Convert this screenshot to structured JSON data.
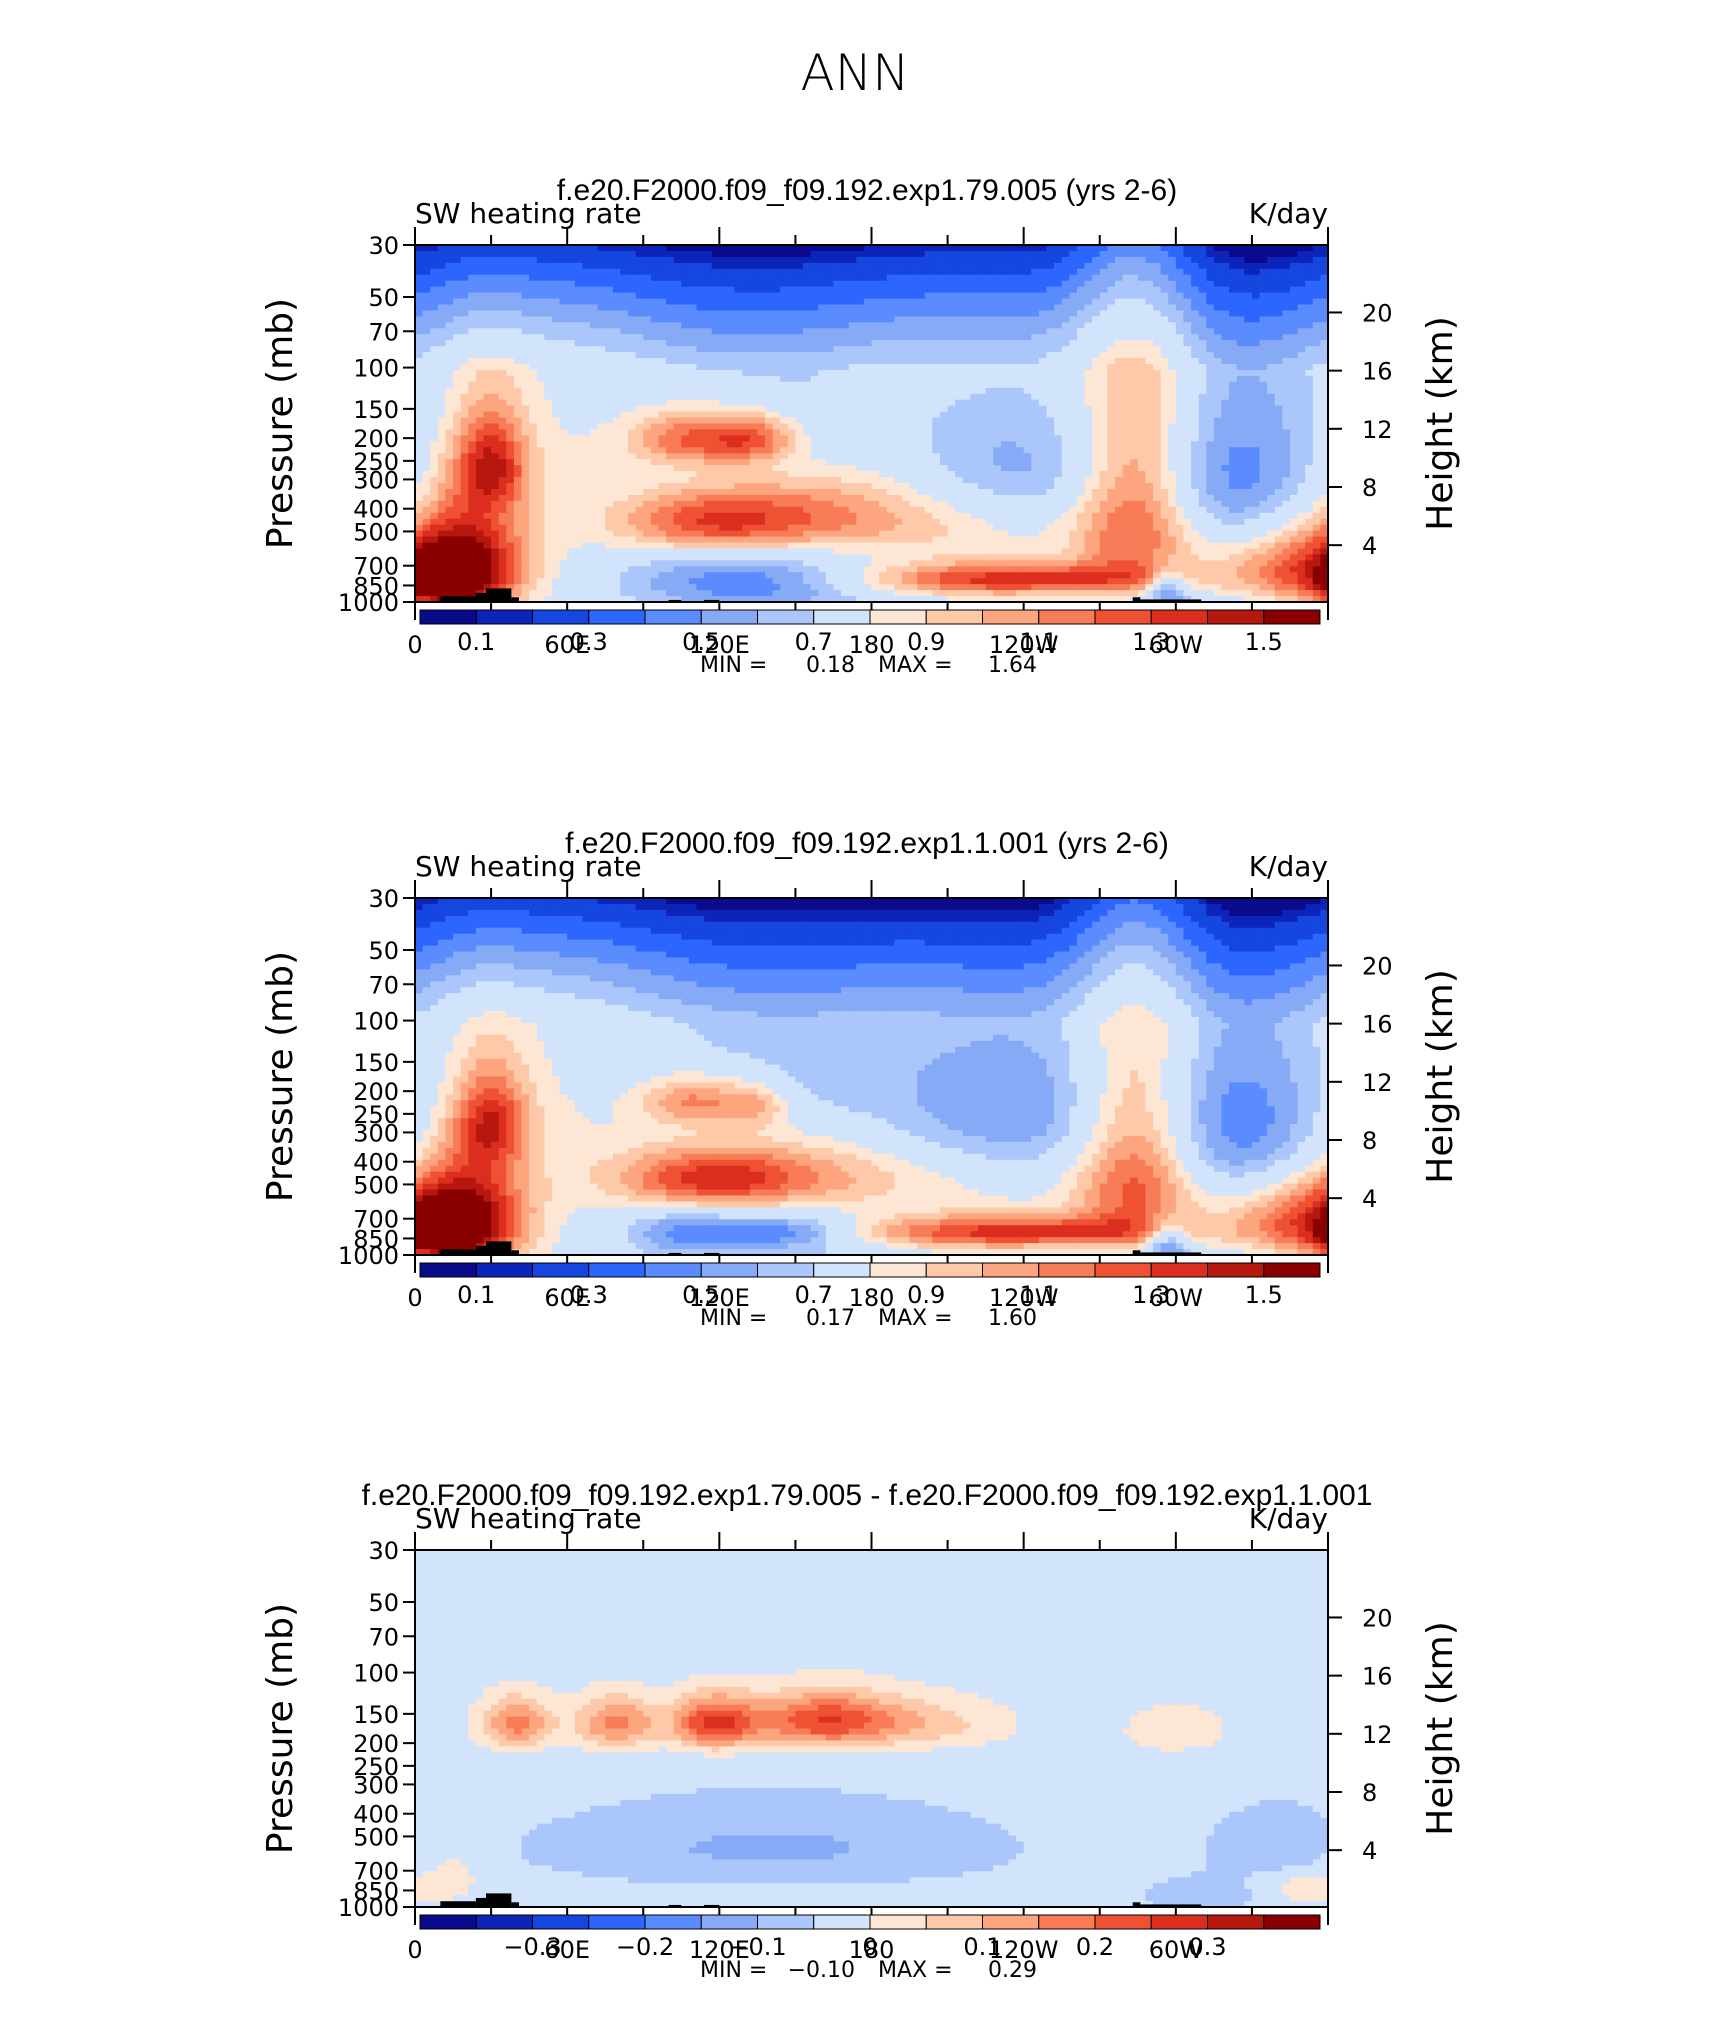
{
  "page": {
    "title": "ANN",
    "axis_labels": {
      "left_ylabel": "Pressure (mb)",
      "right_ylabel": "Height (km)",
      "variable": "SW heating rate",
      "units": "K/day"
    },
    "pressure_ticks": [
      "30",
      "50",
      "70",
      "100",
      "150",
      "200",
      "250",
      "300",
      "400",
      "500",
      "700",
      "850",
      "1000"
    ],
    "height_ticks": [
      "20",
      "16",
      "12",
      "8",
      "4"
    ],
    "lon_ticks": [
      "0",
      "60E",
      "120E",
      "180",
      "120W",
      "60W"
    ],
    "minmax_labels": {
      "min": "MIN =",
      "max": "MAX ="
    }
  },
  "colors": {
    "blues": [
      "#0a0a8c",
      "#0d24b8",
      "#1646e0",
      "#2c66ff",
      "#5a8cff",
      "#86aaf5",
      "#aac6fa",
      "#d2e4fc"
    ],
    "reds": [
      "#fde7d4",
      "#fdc9a8",
      "#fca57f",
      "#f77c57",
      "#ef5133",
      "#dc2e1e",
      "#b6170e",
      "#8a0000"
    ],
    "terrain": "#000000"
  },
  "chart_data": [
    {
      "type": "heatmap",
      "title": "f.e20.F2000.f09_f09.192.exp1.79.005 (yrs 2-6)",
      "left_label": "SW heating rate",
      "right_label": "K/day",
      "min": "0.18",
      "max": "1.64",
      "colorbar_labels": [
        "0.1",
        "0.3",
        "0.5",
        "0.7",
        "0.9",
        "1.1",
        "1.3",
        "1.5"
      ],
      "levels": [
        0.05,
        0.1,
        0.2,
        0.3,
        0.4,
        0.5,
        0.6,
        0.7,
        0.8,
        0.9,
        1.0,
        1.1,
        1.2,
        1.3,
        1.4,
        1.5
      ],
      "xlabel": "",
      "ylabel": "Pressure (mb)",
      "xrange_deg": [
        0,
        360
      ],
      "yrange_mb": [
        30,
        1000
      ],
      "features": [
        {
          "lon": 155,
          "p": 420,
          "slon": 40,
          "sp": 140,
          "amp": 0.55
        },
        {
          "lon": 110,
          "p": 200,
          "slon": 18,
          "sp": 40,
          "amp": 0.55
        },
        {
          "lon": 135,
          "p": 200,
          "slon": 12,
          "sp": 35,
          "amp": 0.4
        },
        {
          "lon": 115,
          "p": 460,
          "slon": 25,
          "sp": 100,
          "amp": 0.45
        },
        {
          "lon": 20,
          "p": 700,
          "slon": 16,
          "sp": 260,
          "amp": 0.75
        },
        {
          "lon": 30,
          "p": 260,
          "slon": 10,
          "sp": 90,
          "amp": 0.55
        },
        {
          "lon": 10,
          "p": 820,
          "slon": 8,
          "sp": 120,
          "amp": 0.55
        },
        {
          "lon": 285,
          "p": 400,
          "slon": 18,
          "sp": 320,
          "amp": 0.7
        },
        {
          "lon": 235,
          "p": 800,
          "slon": 45,
          "sp": 90,
          "amp": 0.6
        },
        {
          "lon": 350,
          "p": 720,
          "slon": 25,
          "sp": 220,
          "amp": 0.6
        },
        {
          "lon": 130,
          "p": 820,
          "slon": 35,
          "sp": 140,
          "amp": -0.25
        },
        {
          "lon": 230,
          "p": 260,
          "slon": 35,
          "sp": 120,
          "amp": -0.35
        },
        {
          "lon": 320,
          "p": 330,
          "slon": 30,
          "sp": 150,
          "amp": -0.25
        },
        {
          "lon": 297,
          "p": 880,
          "slon": 6,
          "sp": 120,
          "amp": -0.45
        }
      ],
      "terrain": [
        {
          "lon0": 10,
          "lon1": 24,
          "p": 945
        },
        {
          "lon0": 24,
          "lon1": 28,
          "p": 915
        },
        {
          "lon0": 28,
          "lon1": 38,
          "p": 875
        },
        {
          "lon0": 38,
          "lon1": 41,
          "p": 955
        },
        {
          "lon0": 100,
          "lon1": 105,
          "p": 980
        },
        {
          "lon0": 114,
          "lon1": 120,
          "p": 980
        },
        {
          "lon0": 283,
          "lon1": 286,
          "p": 955
        },
        {
          "lon0": 286,
          "lon1": 310,
          "p": 975
        }
      ]
    },
    {
      "type": "heatmap",
      "title": "f.e20.F2000.f09_f09.192.exp1.1.001 (yrs 2-6)",
      "left_label": "SW heating rate",
      "right_label": "K/day",
      "min": "0.17",
      "max": "1.60",
      "colorbar_labels": [
        "0.1",
        "0.3",
        "0.5",
        "0.7",
        "0.9",
        "1.1",
        "1.3",
        "1.5"
      ],
      "levels": [
        0.05,
        0.1,
        0.2,
        0.3,
        0.4,
        0.5,
        0.6,
        0.7,
        0.8,
        0.9,
        1.0,
        1.1,
        1.2,
        1.3,
        1.4,
        1.5
      ],
      "xlabel": "",
      "ylabel": "Pressure (mb)",
      "xrange_deg": [
        0,
        360
      ],
      "yrange_mb": [
        30,
        1000
      ],
      "features": [
        {
          "lon": 145,
          "p": 450,
          "slon": 40,
          "sp": 140,
          "amp": 0.5
        },
        {
          "lon": 110,
          "p": 220,
          "slon": 15,
          "sp": 40,
          "amp": 0.45
        },
        {
          "lon": 135,
          "p": 230,
          "slon": 10,
          "sp": 40,
          "amp": 0.3
        },
        {
          "lon": 115,
          "p": 480,
          "slon": 25,
          "sp": 100,
          "amp": 0.45
        },
        {
          "lon": 20,
          "p": 700,
          "slon": 16,
          "sp": 260,
          "amp": 0.75
        },
        {
          "lon": 30,
          "p": 270,
          "slon": 10,
          "sp": 90,
          "amp": 0.5
        },
        {
          "lon": 10,
          "p": 820,
          "slon": 8,
          "sp": 120,
          "amp": 0.55
        },
        {
          "lon": 285,
          "p": 420,
          "slon": 18,
          "sp": 320,
          "amp": 0.7
        },
        {
          "lon": 235,
          "p": 800,
          "slon": 45,
          "sp": 90,
          "amp": 0.6
        },
        {
          "lon": 350,
          "p": 720,
          "slon": 25,
          "sp": 220,
          "amp": 0.6
        },
        {
          "lon": 105,
          "p": 800,
          "slon": 15,
          "sp": 110,
          "amp": -0.25
        },
        {
          "lon": 145,
          "p": 800,
          "slon": 18,
          "sp": 80,
          "amp": -0.3
        },
        {
          "lon": 230,
          "p": 240,
          "slon": 40,
          "sp": 140,
          "amp": -0.4
        },
        {
          "lon": 325,
          "p": 320,
          "slon": 30,
          "sp": 150,
          "amp": -0.25
        },
        {
          "lon": 297,
          "p": 880,
          "slon": 6,
          "sp": 120,
          "amp": -0.45
        }
      ],
      "terrain": [
        {
          "lon0": 10,
          "lon1": 24,
          "p": 945
        },
        {
          "lon0": 24,
          "lon1": 28,
          "p": 915
        },
        {
          "lon0": 28,
          "lon1": 38,
          "p": 875
        },
        {
          "lon0": 38,
          "lon1": 41,
          "p": 955
        },
        {
          "lon0": 100,
          "lon1": 105,
          "p": 980
        },
        {
          "lon0": 114,
          "lon1": 120,
          "p": 980
        },
        {
          "lon0": 283,
          "lon1": 286,
          "p": 955
        },
        {
          "lon0": 286,
          "lon1": 310,
          "p": 975
        }
      ]
    },
    {
      "type": "heatmap",
      "title": "f.e20.F2000.f09_f09.192.exp1.79.005 - f.e20.F2000.f09_f09.192.exp1.1.001",
      "left_label": "SW heating rate",
      "right_label": "K/day",
      "min": "−0.10",
      "max": "0.29",
      "colorbar_labels": [
        "−0.3",
        "−0.2",
        "−0.1",
        "0",
        "0.1",
        "0.2",
        "0.3"
      ],
      "levels": [
        -0.35,
        -0.3,
        -0.25,
        -0.2,
        -0.15,
        -0.1,
        -0.05,
        0,
        0.05,
        0.1,
        0.15,
        0.2,
        0.25,
        0.3,
        0.35
      ],
      "xlabel": "",
      "ylabel": "Pressure (mb)",
      "xrange_deg": [
        0,
        360
      ],
      "yrange_mb": [
        30,
        1000
      ],
      "features": [
        {
          "lon": 40,
          "p": 165,
          "slon": 10,
          "sp": 30,
          "amp": 0.2
        },
        {
          "lon": 80,
          "p": 165,
          "slon": 12,
          "sp": 30,
          "amp": 0.2
        },
        {
          "lon": 110,
          "p": 165,
          "slon": 8,
          "sp": 30,
          "amp": 0.12
        },
        {
          "lon": 122,
          "p": 165,
          "slon": 10,
          "sp": 30,
          "amp": 0.22
        },
        {
          "lon": 160,
          "p": 160,
          "slon": 20,
          "sp": 30,
          "amp": 0.26
        },
        {
          "lon": 200,
          "p": 165,
          "slon": 25,
          "sp": 30,
          "amp": 0.1
        },
        {
          "lon": 300,
          "p": 175,
          "slon": 15,
          "sp": 30,
          "amp": 0.07
        },
        {
          "lon": 140,
          "p": 560,
          "slon": 60,
          "sp": 150,
          "amp": -0.08
        },
        {
          "lon": 340,
          "p": 560,
          "slon": 20,
          "sp": 150,
          "amp": -0.05
        },
        {
          "lon": 310,
          "p": 900,
          "slon": 15,
          "sp": 100,
          "amp": -0.06
        },
        {
          "lon": 15,
          "p": 700,
          "slon": 10,
          "sp": 200,
          "amp": 0.05
        },
        {
          "lon": 350,
          "p": 820,
          "slon": 12,
          "sp": 100,
          "amp": 0.06
        }
      ],
      "terrain": [
        {
          "lon0": 10,
          "lon1": 24,
          "p": 945
        },
        {
          "lon0": 24,
          "lon1": 28,
          "p": 915
        },
        {
          "lon0": 28,
          "lon1": 38,
          "p": 875
        },
        {
          "lon0": 38,
          "lon1": 41,
          "p": 955
        },
        {
          "lon0": 100,
          "lon1": 105,
          "p": 980
        },
        {
          "lon0": 114,
          "lon1": 120,
          "p": 980
        },
        {
          "lon0": 283,
          "lon1": 286,
          "p": 955
        },
        {
          "lon0": 286,
          "lon1": 310,
          "p": 975
        }
      ]
    }
  ]
}
